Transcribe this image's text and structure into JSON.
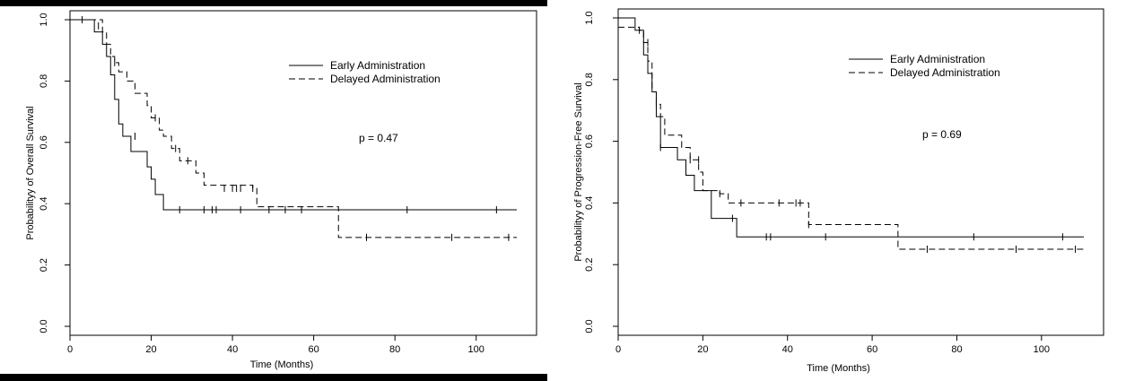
{
  "chart_data": [
    {
      "type": "line",
      "subtype": "kaplan-meier",
      "title": "",
      "xlabel": "Time (Months)",
      "ylabel": "Probabilityy of Overall Survival",
      "xlim": [
        0,
        110
      ],
      "ylim": [
        0,
        1
      ],
      "xticks": [
        0,
        20,
        40,
        60,
        80,
        100
      ],
      "yticks": [
        0.0,
        0.2,
        0.4,
        0.6,
        0.8,
        1.0
      ],
      "annotation": "p = 0.47",
      "legend": "top-right",
      "series": [
        {
          "name": "Early Administration",
          "dash": "solid",
          "steps": [
            [
              0,
              1.0
            ],
            [
              6,
              0.96
            ],
            [
              8,
              0.92
            ],
            [
              9,
              0.88
            ],
            [
              10,
              0.82
            ],
            [
              11,
              0.74
            ],
            [
              12,
              0.66
            ],
            [
              13,
              0.62
            ],
            [
              15,
              0.57
            ],
            [
              19,
              0.52
            ],
            [
              20,
              0.48
            ],
            [
              21,
              0.43
            ],
            [
              23,
              0.38
            ],
            [
              110,
              0.38
            ]
          ],
          "censors": [
            [
              16,
              0.62
            ],
            [
              27,
              0.38
            ],
            [
              33,
              0.38
            ],
            [
              35,
              0.38
            ],
            [
              36,
              0.38
            ],
            [
              42,
              0.38
            ],
            [
              49,
              0.38
            ],
            [
              53,
              0.38
            ],
            [
              57,
              0.38
            ],
            [
              83,
              0.38
            ],
            [
              105,
              0.38
            ]
          ]
        },
        {
          "name": "Delayed Administration",
          "dash": "dashed",
          "steps": [
            [
              0,
              1.0
            ],
            [
              8,
              0.96
            ],
            [
              9,
              0.92
            ],
            [
              10,
              0.88
            ],
            [
              11,
              0.86
            ],
            [
              12,
              0.83
            ],
            [
              14,
              0.8
            ],
            [
              16,
              0.76
            ],
            [
              19,
              0.72
            ],
            [
              20,
              0.68
            ],
            [
              22,
              0.64
            ],
            [
              23,
              0.62
            ],
            [
              25,
              0.58
            ],
            [
              27,
              0.54
            ],
            [
              30,
              0.54
            ],
            [
              31,
              0.5
            ],
            [
              33,
              0.46
            ],
            [
              45,
              0.45
            ],
            [
              46,
              0.39
            ],
            [
              66,
              0.39
            ],
            [
              66.1,
              0.29
            ],
            [
              110,
              0.29
            ]
          ],
          "censors": [
            [
              3,
              1.0
            ],
            [
              7,
              0.98
            ],
            [
              11,
              0.86
            ],
            [
              21,
              0.68
            ],
            [
              26,
              0.58
            ],
            [
              29,
              0.54
            ],
            [
              38,
              0.45
            ],
            [
              40,
              0.45
            ],
            [
              41,
              0.45
            ],
            [
              42,
              0.45
            ],
            [
              45,
              0.45
            ],
            [
              73,
              0.29
            ],
            [
              94,
              0.29
            ],
            [
              108,
              0.29
            ]
          ]
        }
      ]
    },
    {
      "type": "line",
      "subtype": "kaplan-meier",
      "title": "",
      "xlabel": "Time (Months)",
      "ylabel": "Probabilityy of Progression-Free Survival",
      "xlim": [
        0,
        110
      ],
      "ylim": [
        0,
        1
      ],
      "xticks": [
        0,
        20,
        40,
        60,
        80,
        100
      ],
      "yticks": [
        0.0,
        0.2,
        0.4,
        0.6,
        0.8,
        1.0
      ],
      "annotation": "p = 0.69",
      "legend": "top-right",
      "series": [
        {
          "name": "Early Administration",
          "dash": "solid",
          "steps": [
            [
              0,
              1.0
            ],
            [
              4,
              0.96
            ],
            [
              6,
              0.88
            ],
            [
              7,
              0.82
            ],
            [
              8,
              0.76
            ],
            [
              9,
              0.68
            ],
            [
              10,
              0.58
            ],
            [
              14,
              0.54
            ],
            [
              16,
              0.49
            ],
            [
              18,
              0.44
            ],
            [
              22,
              0.35
            ],
            [
              27,
              0.35
            ],
            [
              28,
              0.29
            ],
            [
              110,
              0.29
            ]
          ],
          "censors": [
            [
              10,
              0.58
            ],
            [
              17,
              0.54
            ],
            [
              27,
              0.35
            ],
            [
              35,
              0.29
            ],
            [
              36,
              0.29
            ],
            [
              49,
              0.29
            ],
            [
              84,
              0.29
            ],
            [
              105,
              0.29
            ]
          ]
        },
        {
          "name": "Delayed Administration",
          "dash": "dashed",
          "steps": [
            [
              0,
              0.97
            ],
            [
              5,
              0.96
            ],
            [
              6,
              0.92
            ],
            [
              7,
              0.86
            ],
            [
              8,
              0.76
            ],
            [
              9,
              0.72
            ],
            [
              10,
              0.68
            ],
            [
              11,
              0.62
            ],
            [
              15,
              0.58
            ],
            [
              17,
              0.54
            ],
            [
              19,
              0.5
            ],
            [
              20,
              0.44
            ],
            [
              24,
              0.43
            ],
            [
              26,
              0.4
            ],
            [
              44,
              0.4
            ],
            [
              45,
              0.33
            ],
            [
              66,
              0.33
            ],
            [
              66.1,
              0.25
            ],
            [
              110,
              0.25
            ]
          ],
          "censors": [
            [
              5,
              0.96
            ],
            [
              7,
              0.92
            ],
            [
              9,
              0.72
            ],
            [
              19,
              0.54
            ],
            [
              24,
              0.43
            ],
            [
              29,
              0.4
            ],
            [
              38,
              0.4
            ],
            [
              42,
              0.4
            ],
            [
              43,
              0.4
            ],
            [
              45,
              0.33
            ],
            [
              73,
              0.25
            ],
            [
              94,
              0.25
            ],
            [
              108,
              0.25
            ]
          ]
        }
      ]
    }
  ]
}
